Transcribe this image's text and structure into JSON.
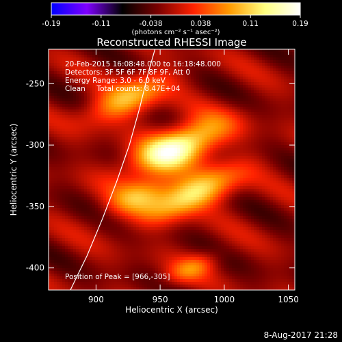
{
  "chart_data": {
    "type": "heatmap",
    "title": "Reconstructed RHESSI Image",
    "xlabel": "Heliocentric X (arcsec)",
    "ylabel": "Heliocentric Y (arcsec)",
    "xlim": [
      863,
      1055
    ],
    "ylim": [
      -418,
      -222
    ],
    "xticks": [
      900,
      950,
      1000,
      1050
    ],
    "yticks": [
      -250,
      -300,
      -350,
      -400
    ],
    "colorbar": {
      "range": [
        -0.19,
        0.19
      ],
      "ticks": [
        "-0.19",
        "-0.11",
        "-0.038",
        "0.038",
        "0.11",
        "0.19"
      ],
      "label": "(photons cm⁻² s⁻¹ asec⁻²)",
      "colors": [
        "#0000ff",
        "#7f00ff",
        "#000000",
        "#7a0000",
        "#ff2200",
        "#ff9a00",
        "#ffff80",
        "#ffffff"
      ]
    },
    "annotations": [
      "20-Feb-2015 16:08:48.000 to 16:18:48.000",
      "Detectors: 3F 5F 6F 7F 8F 9F, Att 0",
      "Energy Range: 3.0 - 6.0 keV",
      "Clean     Total counts: 8.47E+04"
    ],
    "peak_label": "Position of Peak = [966,-305]",
    "peak": [
      966,
      -305
    ],
    "sources": [
      {
        "x": 963,
        "y": -302,
        "amp": 0.19,
        "sx": 28,
        "sy": 11,
        "angle": 25
      },
      {
        "x": 975,
        "y": -340,
        "amp": 0.15,
        "sx": 28,
        "sy": 10,
        "angle": 25
      },
      {
        "x": 925,
        "y": -262,
        "amp": 0.12,
        "sx": 24,
        "sy": 10,
        "angle": 25
      },
      {
        "x": 935,
        "y": -340,
        "amp": 0.09,
        "sx": 20,
        "sy": 9,
        "angle": 25
      },
      {
        "x": 975,
        "y": -400,
        "amp": 0.07,
        "sx": 16,
        "sy": 7,
        "angle": 25
      }
    ],
    "limb_curve": [
      [
        880,
        -418
      ],
      [
        893,
        -390
      ],
      [
        905,
        -360
      ],
      [
        916,
        -330
      ],
      [
        926,
        -300
      ],
      [
        934,
        -270
      ],
      [
        941,
        -240
      ],
      [
        946,
        -222
      ]
    ]
  },
  "footer": {
    "date": "8-Aug-2017 21:28"
  }
}
